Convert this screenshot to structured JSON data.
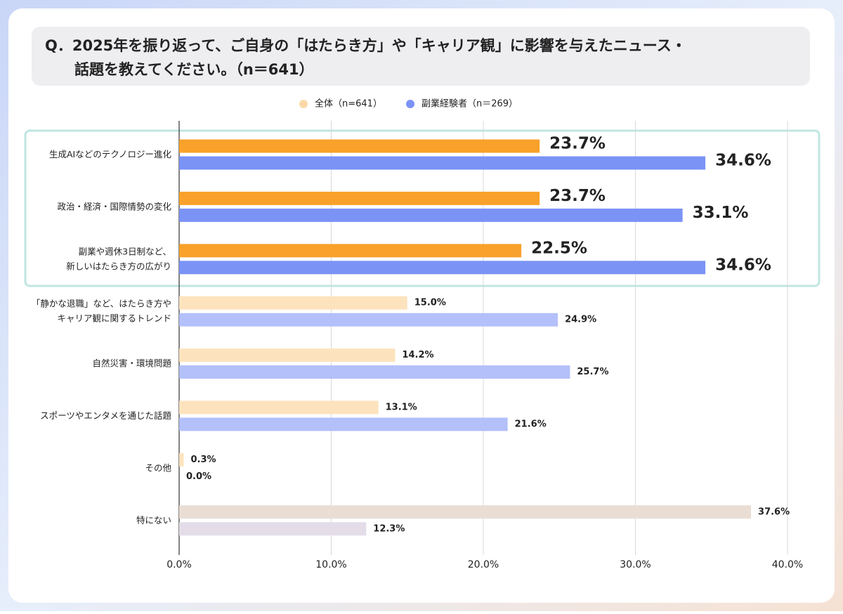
{
  "chart_data": {
    "type": "bar",
    "orientation": "horizontal",
    "title": "Q．2025年を振り返って、ご自身の「はたらき方」や「キャリア観」に影響を与えたニュース・\n話題を教えてください。（n＝641）",
    "categories": [
      "生成AIなどのテクノロジー進化",
      "政治・経済・国際情勢の変化",
      "副業や週休3日制など、\n新しいはたらき方の広がり",
      "「静かな退職」など、はたらき方や\nキャリア観に関するトレンド",
      "自然災害・環境問題",
      "スポーツやエンタメを通じた話題",
      "その他",
      "特にない"
    ],
    "series": [
      {
        "name": "全体（n=641）",
        "color": "#fbd9a8",
        "colors": [
          "#f9a12a",
          "#f9a12a",
          "#f9a12a",
          "#fde3bd",
          "#fde3bd",
          "#fde3bd",
          "#fde3bd",
          "#e9ddd4"
        ],
        "values": [
          23.7,
          23.7,
          22.5,
          15.0,
          14.2,
          13.1,
          0.3,
          37.6
        ],
        "value_labels": [
          "23.7%",
          "23.7%",
          "22.5%",
          "15.0%",
          "14.2%",
          "13.1%",
          "0.3%",
          "37.6%"
        ]
      },
      {
        "name": "副業経験者（n＝269）",
        "color": "#7b93f5",
        "colors": [
          "#7b93f5",
          "#7b93f5",
          "#7b93f5",
          "#b3c0fa",
          "#b3c0fa",
          "#b3c0fa",
          "#b3c0fa",
          "#e4dde9"
        ],
        "values": [
          34.6,
          33.1,
          34.6,
          24.9,
          25.7,
          21.6,
          0.0,
          12.3
        ],
        "value_labels": [
          "34.6%",
          "33.1%",
          "34.6%",
          "24.9%",
          "25.7%",
          "21.6%",
          "0.0%",
          "12.3%"
        ]
      }
    ],
    "xlim": [
      0,
      40
    ],
    "xticks": [
      {
        "value": 0,
        "label": "0.0%"
      },
      {
        "value": 10,
        "label": "10.0%"
      },
      {
        "value": 20,
        "label": "20.0%"
      },
      {
        "value": 30,
        "label": "30.0%"
      },
      {
        "value": 40,
        "label": "40.0%"
      }
    ],
    "grid": true,
    "legend": "top"
  }
}
